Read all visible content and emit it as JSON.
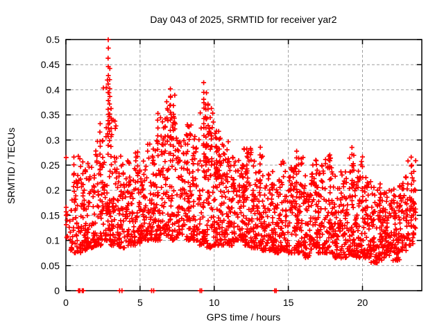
{
  "window": {
    "background": "#ffffff"
  },
  "chart_data": {
    "type": "scatter",
    "title": "Day 043 of 2025, SRMTID for receiver yar2",
    "xlabel": "GPS time / hours",
    "ylabel": "SRMTID / TECUs",
    "xlim": [
      0,
      24
    ],
    "ylim": [
      0,
      0.5
    ],
    "xticks": {
      "values": [
        0,
        5,
        10,
        15,
        20
      ],
      "labels": [
        "0",
        "5",
        "10",
        "15",
        "20"
      ]
    },
    "yticks": {
      "values": [
        0,
        0.05,
        0.1,
        0.15,
        0.2,
        0.25,
        0.3,
        0.35,
        0.4,
        0.45,
        0.5
      ],
      "labels": [
        "0",
        "0.05",
        "0.1",
        "0.15",
        "0.2",
        "0.25",
        "0.3",
        "0.35",
        "0.4",
        "0.45",
        "0.5"
      ]
    },
    "grid": {
      "show": true,
      "style": "dashed"
    },
    "legend": {
      "show": false
    },
    "colors": {
      "marker": "#ff0000",
      "grid": "#9e9e9e",
      "border": "#000000",
      "text": "#000000",
      "background": "#ffffff"
    },
    "series": [
      {
        "name": "SRMTID",
        "marker": "plus",
        "marker_size": 7,
        "color": "#ff0000",
        "point_cloud": {
          "seed": 20250043,
          "columns_per_bin": 14,
          "x_jitter": 0.02,
          "bins": [
            [
              0.0,
              0.5,
              22,
              0.08,
              0.185,
              1.5
            ],
            [
              0.5,
              1.0,
              42,
              0.075,
              0.27,
              1.7
            ],
            [
              1.0,
              1.5,
              52,
              0.08,
              0.26,
              1.7
            ],
            [
              1.5,
              2.0,
              48,
              0.085,
              0.25,
              1.7
            ],
            [
              2.0,
              2.5,
              52,
              0.09,
              0.32,
              1.8
            ],
            [
              2.5,
              3.0,
              55,
              0.1,
              0.42,
              2.0
            ],
            [
              3.0,
              3.5,
              52,
              0.09,
              0.35,
              2.0
            ],
            [
              3.5,
              4.0,
              48,
              0.085,
              0.27,
              1.7
            ],
            [
              4.0,
              4.5,
              50,
              0.09,
              0.26,
              1.7
            ],
            [
              4.5,
              5.0,
              46,
              0.09,
              0.28,
              1.7
            ],
            [
              5.0,
              5.5,
              50,
              0.1,
              0.26,
              1.7
            ],
            [
              5.5,
              6.0,
              50,
              0.1,
              0.3,
              1.8
            ],
            [
              6.0,
              6.5,
              54,
              0.1,
              0.35,
              1.9
            ],
            [
              6.5,
              7.0,
              54,
              0.11,
              0.38,
              1.9
            ],
            [
              7.0,
              7.5,
              54,
              0.1,
              0.4,
              2.0
            ],
            [
              7.5,
              8.0,
              50,
              0.11,
              0.3,
              1.8
            ],
            [
              8.0,
              8.5,
              54,
              0.1,
              0.33,
              1.8
            ],
            [
              8.5,
              9.0,
              54,
              0.1,
              0.31,
              1.8
            ],
            [
              9.0,
              9.5,
              58,
              0.09,
              0.4,
              1.9
            ],
            [
              9.5,
              10.0,
              58,
              0.085,
              0.38,
              1.9
            ],
            [
              10.0,
              10.5,
              62,
              0.09,
              0.33,
              1.6
            ],
            [
              10.5,
              11.0,
              58,
              0.09,
              0.3,
              1.7
            ],
            [
              11.0,
              11.5,
              54,
              0.09,
              0.28,
              1.7
            ],
            [
              11.5,
              12.0,
              54,
              0.1,
              0.26,
              1.7
            ],
            [
              12.0,
              12.5,
              54,
              0.09,
              0.29,
              1.7
            ],
            [
              12.5,
              13.0,
              50,
              0.085,
              0.26,
              1.7
            ],
            [
              13.0,
              13.5,
              54,
              0.08,
              0.28,
              1.7
            ],
            [
              13.5,
              14.0,
              50,
              0.08,
              0.24,
              1.7
            ],
            [
              14.0,
              14.5,
              50,
              0.075,
              0.23,
              1.7
            ],
            [
              14.5,
              15.0,
              50,
              0.08,
              0.26,
              1.7
            ],
            [
              15.0,
              15.5,
              54,
              0.075,
              0.25,
              1.7
            ],
            [
              15.5,
              16.0,
              54,
              0.075,
              0.27,
              1.7
            ],
            [
              16.0,
              16.5,
              54,
              0.065,
              0.24,
              1.7
            ],
            [
              16.5,
              17.0,
              54,
              0.08,
              0.26,
              1.7
            ],
            [
              17.0,
              17.5,
              54,
              0.075,
              0.25,
              1.7
            ],
            [
              17.5,
              18.0,
              54,
              0.075,
              0.27,
              1.7
            ],
            [
              18.0,
              18.5,
              54,
              0.065,
              0.23,
              1.7
            ],
            [
              18.5,
              19.0,
              54,
              0.065,
              0.24,
              1.7
            ],
            [
              19.0,
              19.5,
              54,
              0.07,
              0.27,
              1.7
            ],
            [
              19.5,
              20.0,
              54,
              0.065,
              0.26,
              1.7
            ],
            [
              20.0,
              20.5,
              54,
              0.065,
              0.23,
              1.7
            ],
            [
              20.5,
              21.0,
              54,
              0.055,
              0.22,
              1.7
            ],
            [
              21.0,
              21.5,
              54,
              0.06,
              0.21,
              1.6
            ],
            [
              21.5,
              22.0,
              58,
              0.07,
              0.2,
              1.5
            ],
            [
              22.0,
              22.5,
              54,
              0.06,
              0.21,
              1.6
            ],
            [
              22.5,
              23.0,
              48,
              0.08,
              0.23,
              1.6
            ],
            [
              23.0,
              23.6,
              44,
              0.09,
              0.26,
              1.5
            ]
          ],
          "streaks": [
            [
              0.55,
              0.18,
              0.265,
              6
            ],
            [
              1.15,
              0.17,
              0.255,
              5
            ],
            [
              2.3,
              0.24,
              0.33,
              7
            ],
            [
              2.85,
              0.27,
              0.5,
              14
            ],
            [
              2.95,
              0.3,
              0.44,
              9
            ],
            [
              3.05,
              0.25,
              0.36,
              7
            ],
            [
              4.7,
              0.2,
              0.275,
              5
            ],
            [
              5.9,
              0.19,
              0.28,
              5
            ],
            [
              6.2,
              0.27,
              0.35,
              7
            ],
            [
              6.7,
              0.26,
              0.34,
              6
            ],
            [
              7.05,
              0.29,
              0.4,
              8
            ],
            [
              7.25,
              0.27,
              0.37,
              7
            ],
            [
              8.2,
              0.24,
              0.33,
              6
            ],
            [
              9.3,
              0.24,
              0.415,
              11
            ],
            [
              9.45,
              0.23,
              0.36,
              8
            ],
            [
              9.6,
              0.22,
              0.33,
              6
            ],
            [
              10.15,
              0.22,
              0.315,
              8
            ],
            [
              10.35,
              0.21,
              0.3,
              7
            ],
            [
              12.2,
              0.2,
              0.285,
              6
            ],
            [
              13.1,
              0.19,
              0.285,
              7
            ],
            [
              15.55,
              0.17,
              0.28,
              8
            ],
            [
              16.9,
              0.17,
              0.25,
              5
            ],
            [
              17.8,
              0.17,
              0.27,
              5
            ],
            [
              19.3,
              0.17,
              0.285,
              8
            ],
            [
              20.0,
              0.16,
              0.265,
              6
            ],
            [
              21.2,
              0.14,
              0.215,
              5
            ],
            [
              23.3,
              0.13,
              0.265,
              9
            ],
            [
              23.45,
              0.11,
              0.24,
              7
            ]
          ],
          "zero_points": [
            0.85,
            0.88,
            0.91,
            0.94,
            1.1,
            1.18,
            3.62,
            3.78,
            5.78,
            5.92,
            9.05,
            9.15,
            14.08,
            14.18
          ],
          "y_axis_points": [
            0.265,
            0.166,
            0.157,
            0.15
          ]
        }
      }
    ]
  }
}
